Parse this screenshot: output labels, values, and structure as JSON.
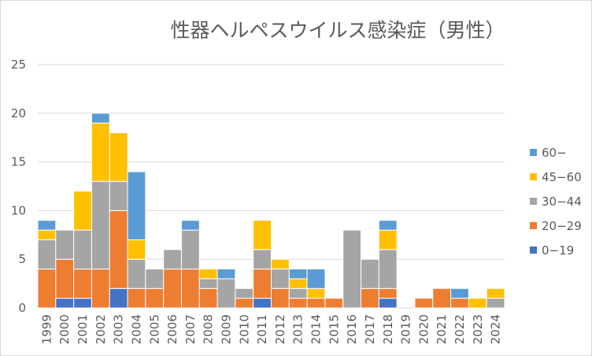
{
  "chart_data": {
    "type": "bar",
    "stacked": true,
    "title": "性器ヘルペスウイルス感染症（男性）",
    "xlabel": "",
    "ylabel": "",
    "ylim": [
      0,
      25
    ],
    "yticks": [
      "0",
      "5",
      "10",
      "15",
      "20",
      "25"
    ],
    "grid": true,
    "legend_position": "right",
    "categories": [
      "1999",
      "2000",
      "2001",
      "2002",
      "2003",
      "2004",
      "2005",
      "2006",
      "2007",
      "2008",
      "2009",
      "2010",
      "2011",
      "2012",
      "2013",
      "2014",
      "2015",
      "2016",
      "2017",
      "2018",
      "2019",
      "2020",
      "2021",
      "2022",
      "2023",
      "2024"
    ],
    "series": [
      {
        "name": "0−19",
        "color": "#4472c4",
        "values": [
          0,
          1,
          1,
          0,
          2,
          0,
          0,
          0,
          0,
          0,
          0,
          0,
          1,
          0,
          0,
          0,
          0,
          0,
          0,
          1,
          0,
          0,
          0,
          0,
          0,
          0
        ]
      },
      {
        "name": "20−29",
        "color": "#ed7d31",
        "values": [
          4,
          4,
          3,
          4,
          8,
          2,
          2,
          4,
          4,
          2,
          0,
          1,
          3,
          2,
          1,
          1,
          1,
          0,
          2,
          1,
          0,
          1,
          2,
          1,
          0,
          0
        ]
      },
      {
        "name": "30−44",
        "color": "#a5a5a5",
        "values": [
          3,
          3,
          4,
          9,
          3,
          3,
          2,
          2,
          4,
          1,
          3,
          1,
          2,
          2,
          1,
          0,
          0,
          8,
          3,
          4,
          0,
          0,
          0,
          0,
          0,
          1
        ]
      },
      {
        "name": "45−60",
        "color": "#ffc000",
        "values": [
          1,
          0,
          4,
          6,
          5,
          2,
          0,
          0,
          0,
          1,
          0,
          0,
          3,
          1,
          1,
          1,
          0,
          0,
          0,
          2,
          0,
          0,
          0,
          0,
          1,
          1
        ]
      },
      {
        "name": "60−",
        "color": "#5b9bd5",
        "values": [
          1,
          0,
          0,
          1,
          0,
          7,
          0,
          0,
          1,
          0,
          1,
          0,
          0,
          0,
          1,
          2,
          0,
          0,
          0,
          1,
          0,
          0,
          0,
          1,
          0,
          0
        ]
      }
    ]
  }
}
